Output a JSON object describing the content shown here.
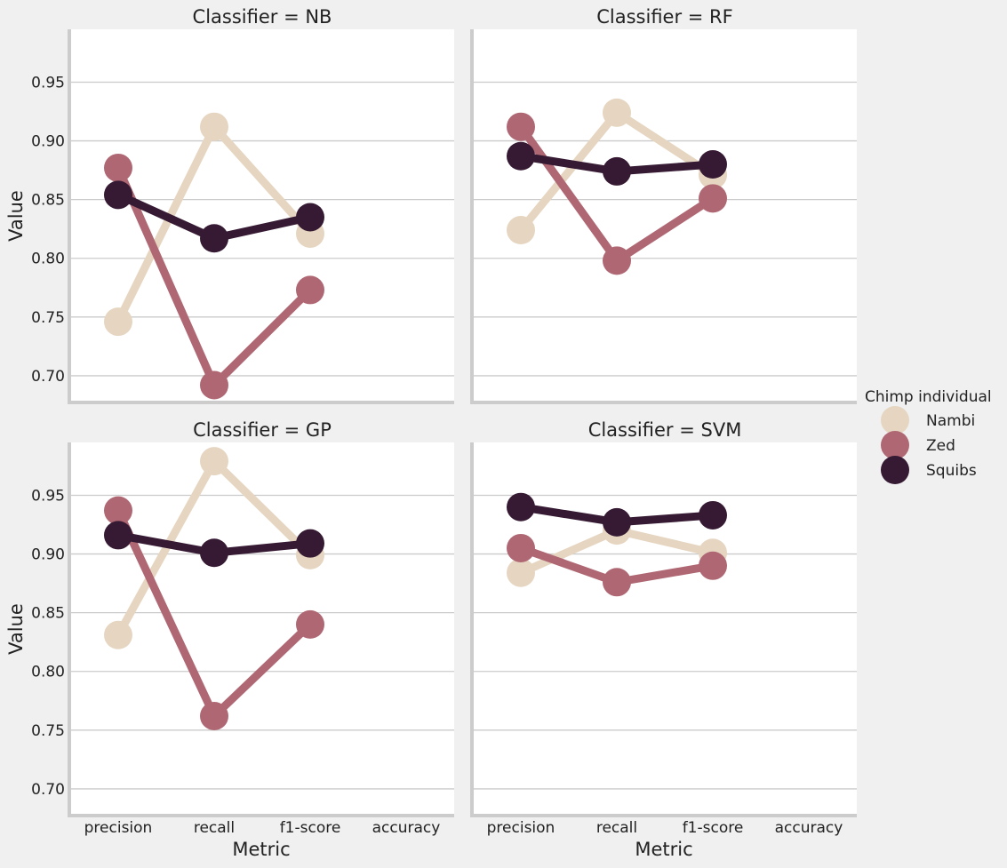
{
  "chart_data": {
    "type": "line",
    "categories": [
      "precision",
      "recall",
      "f1-score",
      "accuracy"
    ],
    "xlabel": "Metric",
    "ylabel": "Value",
    "ylim": [
      0.678,
      0.995
    ],
    "yticks": [
      "0.70",
      "0.75",
      "0.80",
      "0.85",
      "0.90",
      "0.95"
    ],
    "grid": true,
    "legend": {
      "title": "Chimp individual",
      "placement": "right",
      "entries": [
        {
          "name": "Nambi",
          "color": "#e6d6c1"
        },
        {
          "name": "Zed",
          "color": "#af6873"
        },
        {
          "name": "Squibs",
          "color": "#361a33"
        }
      ]
    },
    "facets": [
      {
        "title": "Classifier = NB",
        "series": [
          {
            "name": "Nambi",
            "values": [
              0.746,
              0.912,
              0.821,
              null
            ]
          },
          {
            "name": "Zed",
            "values": [
              0.877,
              0.692,
              0.773,
              null
            ]
          },
          {
            "name": "Squibs",
            "values": [
              0.854,
              0.817,
              0.835,
              null
            ]
          }
        ]
      },
      {
        "title": "Classifier = RF",
        "series": [
          {
            "name": "Nambi",
            "values": [
              0.824,
              0.924,
              0.871,
              null
            ]
          },
          {
            "name": "Zed",
            "values": [
              0.912,
              0.798,
              0.851,
              null
            ]
          },
          {
            "name": "Squibs",
            "values": [
              0.887,
              0.874,
              0.88,
              null
            ]
          }
        ]
      },
      {
        "title": "Classifier = GP",
        "series": [
          {
            "name": "Nambi",
            "values": [
              0.831,
              0.979,
              0.899,
              null
            ]
          },
          {
            "name": "Zed",
            "values": [
              0.937,
              0.762,
              0.84,
              null
            ]
          },
          {
            "name": "Squibs",
            "values": [
              0.916,
              0.901,
              0.909,
              null
            ]
          }
        ]
      },
      {
        "title": "Classifier = SVM",
        "series": [
          {
            "name": "Nambi",
            "values": [
              0.884,
              0.92,
              0.901,
              null
            ]
          },
          {
            "name": "Zed",
            "values": [
              0.905,
              0.876,
              0.89,
              null
            ]
          },
          {
            "name": "Squibs",
            "values": [
              0.94,
              0.927,
              0.933,
              null
            ]
          }
        ]
      }
    ]
  }
}
